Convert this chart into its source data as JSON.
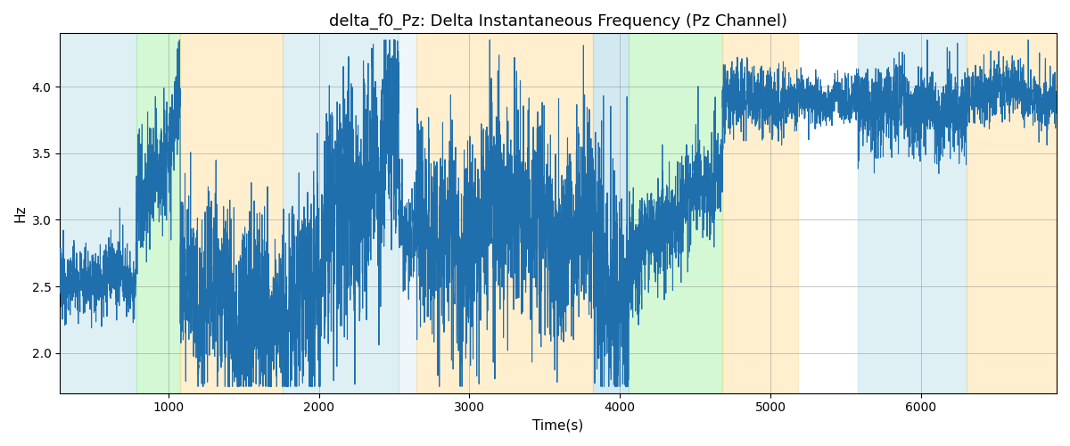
{
  "title": "delta_f0_Pz: Delta Instantaneous Frequency (Pz Channel)",
  "xlabel": "Time(s)",
  "ylabel": "Hz",
  "line_color": "#1f6fad",
  "line_width": 0.8,
  "ylim": [
    1.7,
    4.4
  ],
  "xlim": [
    280,
    6900
  ],
  "grid": true,
  "background_color": "#ffffff",
  "colored_bands": [
    {
      "xmin": 280,
      "xmax": 790,
      "color": "#add8e6",
      "alpha": 0.38
    },
    {
      "xmin": 790,
      "xmax": 1080,
      "color": "#90ee90",
      "alpha": 0.38
    },
    {
      "xmin": 1080,
      "xmax": 1760,
      "color": "#ffd580",
      "alpha": 0.38
    },
    {
      "xmin": 1760,
      "xmax": 2530,
      "color": "#add8e6",
      "alpha": 0.38
    },
    {
      "xmin": 2530,
      "xmax": 2650,
      "color": "#add8e6",
      "alpha": 0.18
    },
    {
      "xmin": 2650,
      "xmax": 3820,
      "color": "#ffd580",
      "alpha": 0.38
    },
    {
      "xmin": 3820,
      "xmax": 4060,
      "color": "#add8e6",
      "alpha": 0.55
    },
    {
      "xmin": 4060,
      "xmax": 4680,
      "color": "#90ee90",
      "alpha": 0.38
    },
    {
      "xmin": 4680,
      "xmax": 5180,
      "color": "#ffd580",
      "alpha": 0.38
    },
    {
      "xmin": 5580,
      "xmax": 6300,
      "color": "#add8e6",
      "alpha": 0.38
    },
    {
      "xmin": 6300,
      "xmax": 6900,
      "color": "#ffd580",
      "alpha": 0.38
    }
  ],
  "xticks": [
    1000,
    2000,
    3000,
    4000,
    5000,
    6000
  ],
  "yticks": [
    2.0,
    2.5,
    3.0,
    3.5,
    4.0
  ],
  "t_start": 280,
  "t_end": 6900,
  "n_points": 6500
}
